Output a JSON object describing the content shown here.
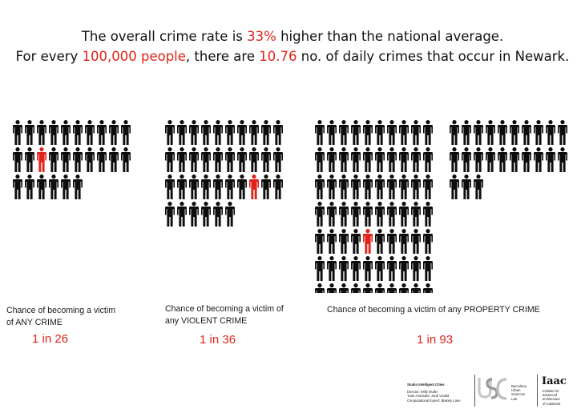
{
  "headline": {
    "line1": {
      "before": "The overall crime rate is ",
      "highlight": "33%",
      "after": " higher than the national average."
    },
    "line2": {
      "before": "For every ",
      "highlight1": "100,000 people",
      "middle": ", there are ",
      "highlight2": "10.76",
      "after": " no. of daily crimes that occur in Newark."
    }
  },
  "panels": [
    {
      "caption_line1": "Chance of becoming a victim",
      "caption_line2": "of ANY CRIME",
      "odds": "1 in 26",
      "total_figures": 26,
      "highlight_index": 12
    },
    {
      "caption_line1": "Chance of becoming a victim of",
      "caption_line2": "any VIOLENT CRIME",
      "odds": "1 in 36",
      "total_figures": 36,
      "highlight_index": 27
    },
    {
      "caption_line1": "Chance of becoming a victim of any PROPERTY CRIME",
      "caption_line2": "",
      "odds": "1 in 93",
      "total_figures": 93,
      "highlight_index": 44
    }
  ],
  "credits": {
    "studio": "Studio Intelligent Cities",
    "director": "Director: Willy Muller",
    "tutor": "Tutor Assistant: Jordi Vivaldi",
    "expert": "Computational Expert: Blakely Lane",
    "lab_line1": "Barcelona",
    "lab_line2": "Urban",
    "lab_line3": "Sciences",
    "lab_line4": "Lab",
    "iaac_logo": "Iaac",
    "iaac_line1": "Institute for",
    "iaac_line2": "advanced",
    "iaac_line3": "architecture",
    "iaac_line4": "of Catalonia"
  },
  "colors": {
    "figure": "#0d0d0d",
    "highlight": "#e0241b"
  },
  "icons": {
    "figure": "person-icon",
    "bus_logo": "barcelona-urban-sciences-lab-logo"
  }
}
